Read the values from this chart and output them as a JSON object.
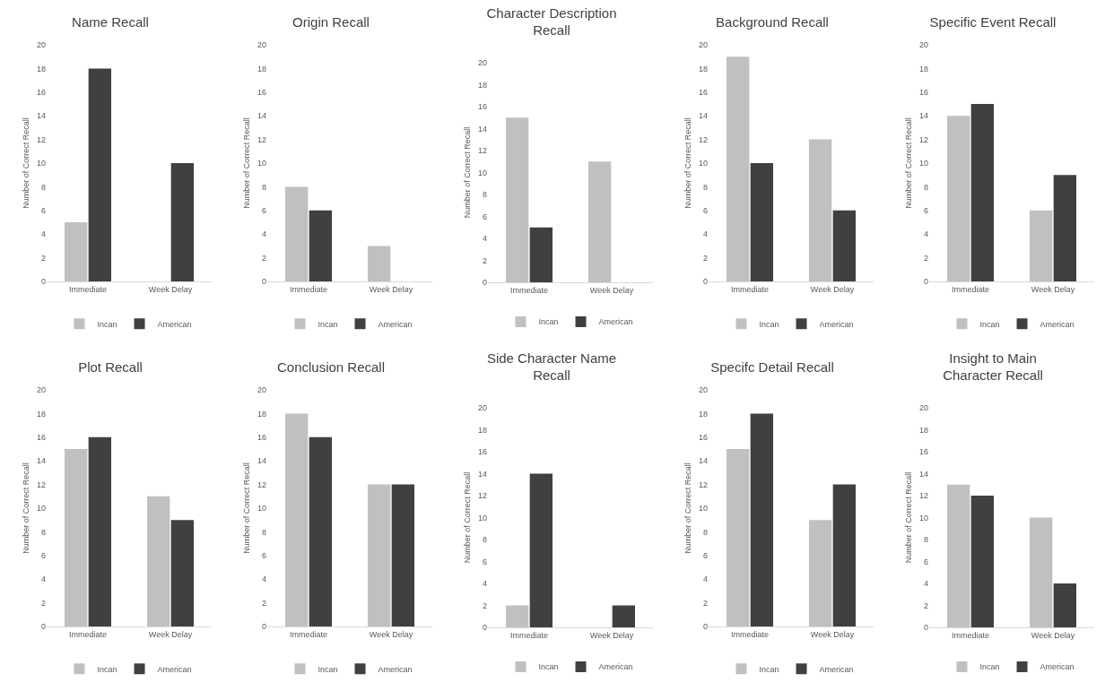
{
  "chart_data": [
    {
      "type": "bar",
      "title": "Name Recall",
      "ylabel": "Number of Correct Recall",
      "categories": [
        "Immediate",
        "Week Delay"
      ],
      "series": [
        {
          "name": "Incan",
          "color": "#c0c0c0",
          "values": [
            5,
            0
          ]
        },
        {
          "name": "American",
          "color": "#404040",
          "values": [
            18,
            10
          ]
        }
      ],
      "ylim": [
        0,
        20
      ],
      "yticks": [
        0,
        2,
        4,
        6,
        8,
        10,
        12,
        14,
        16,
        18,
        20
      ],
      "grid": false,
      "legend": "bottom"
    },
    {
      "type": "bar",
      "title": "Origin Recall",
      "ylabel": "Number of Correct Recall",
      "categories": [
        "Immediate",
        "Week Delay"
      ],
      "series": [
        {
          "name": "Incan",
          "color": "#c0c0c0",
          "values": [
            8,
            3
          ]
        },
        {
          "name": "American",
          "color": "#404040",
          "values": [
            6,
            0
          ]
        }
      ],
      "ylim": [
        0,
        20
      ],
      "yticks": [
        0,
        2,
        4,
        6,
        8,
        10,
        12,
        14,
        16,
        18,
        20
      ],
      "grid": false,
      "legend": "bottom"
    },
    {
      "type": "bar",
      "title": "Character Description Recall",
      "ylabel": "Number of Correct Recall",
      "categories": [
        "Immediate",
        "Week Delay"
      ],
      "series": [
        {
          "name": "Incan",
          "color": "#c0c0c0",
          "values": [
            15,
            11
          ]
        },
        {
          "name": "American",
          "color": "#404040",
          "values": [
            5,
            0
          ]
        }
      ],
      "ylim": [
        0,
        20
      ],
      "yticks": [
        0,
        2,
        4,
        6,
        8,
        10,
        12,
        14,
        16,
        18,
        20
      ],
      "grid": false,
      "legend": "bottom"
    },
    {
      "type": "bar",
      "title": "Background Recall",
      "ylabel": "Number of Correct Recall",
      "categories": [
        "Immediate",
        "Week Delay"
      ],
      "series": [
        {
          "name": "Incan",
          "color": "#c0c0c0",
          "values": [
            19,
            12
          ]
        },
        {
          "name": "American",
          "color": "#404040",
          "values": [
            10,
            6
          ]
        }
      ],
      "ylim": [
        0,
        20
      ],
      "yticks": [
        0,
        2,
        4,
        6,
        8,
        10,
        12,
        14,
        16,
        18,
        20
      ],
      "grid": false,
      "legend": "bottom"
    },
    {
      "type": "bar",
      "title": "Specific Event Recall",
      "ylabel": "Number of Correct Recall",
      "categories": [
        "Immediate",
        "Week Delay"
      ],
      "series": [
        {
          "name": "Incan",
          "color": "#c0c0c0",
          "values": [
            14,
            6
          ]
        },
        {
          "name": "American",
          "color": "#404040",
          "values": [
            15,
            9
          ]
        }
      ],
      "ylim": [
        0,
        20
      ],
      "yticks": [
        0,
        2,
        4,
        6,
        8,
        10,
        12,
        14,
        16,
        18,
        20
      ],
      "grid": false,
      "legend": "bottom"
    },
    {
      "type": "bar",
      "title": "Plot Recall",
      "ylabel": "Number of Correct Recall",
      "categories": [
        "Immediate",
        "Week Delay"
      ],
      "series": [
        {
          "name": "Incan",
          "color": "#c0c0c0",
          "values": [
            15,
            11
          ]
        },
        {
          "name": "American",
          "color": "#404040",
          "values": [
            16,
            9
          ]
        }
      ],
      "ylim": [
        0,
        20
      ],
      "yticks": [
        0,
        2,
        4,
        6,
        8,
        10,
        12,
        14,
        16,
        18,
        20
      ],
      "grid": false,
      "legend": "bottom"
    },
    {
      "type": "bar",
      "title": "Conclusion Recall",
      "ylabel": "Number of Correct Recall",
      "categories": [
        "Immediate",
        "Week Delay"
      ],
      "series": [
        {
          "name": "Incan",
          "color": "#c0c0c0",
          "values": [
            18,
            12
          ]
        },
        {
          "name": "American",
          "color": "#404040",
          "values": [
            16,
            12
          ]
        }
      ],
      "ylim": [
        0,
        20
      ],
      "yticks": [
        0,
        2,
        4,
        6,
        8,
        10,
        12,
        14,
        16,
        18,
        20
      ],
      "grid": false,
      "legend": "bottom"
    },
    {
      "type": "bar",
      "title": "Side Character Name Recall",
      "ylabel": "Number of Correct Recall",
      "categories": [
        "Immediate",
        "Week Delay"
      ],
      "series": [
        {
          "name": "Incan",
          "color": "#c0c0c0",
          "values": [
            2,
            0
          ]
        },
        {
          "name": "American",
          "color": "#404040",
          "values": [
            14,
            2
          ]
        }
      ],
      "ylim": [
        0,
        20
      ],
      "yticks": [
        0,
        2,
        4,
        6,
        8,
        10,
        12,
        14,
        16,
        18,
        20
      ],
      "grid": false,
      "legend": "bottom"
    },
    {
      "type": "bar",
      "title": "Specifc Detail Recall",
      "ylabel": "Number of Correct Recall",
      "categories": [
        "Immediate",
        "Week Delay"
      ],
      "series": [
        {
          "name": "Incan",
          "color": "#c0c0c0",
          "values": [
            15,
            9
          ]
        },
        {
          "name": "American",
          "color": "#404040",
          "values": [
            18,
            12
          ]
        }
      ],
      "ylim": [
        0,
        20
      ],
      "yticks": [
        0,
        2,
        4,
        6,
        8,
        10,
        12,
        14,
        16,
        18,
        20
      ],
      "grid": false,
      "legend": "bottom"
    },
    {
      "type": "bar",
      "title": "Insight to Main Character Recall",
      "ylabel": "Number of Correct Recall",
      "categories": [
        "Immediate",
        "Week Delay"
      ],
      "series": [
        {
          "name": "Incan",
          "color": "#c0c0c0",
          "values": [
            13,
            10
          ]
        },
        {
          "name": "American",
          "color": "#404040",
          "values": [
            12,
            4
          ]
        }
      ],
      "ylim": [
        0,
        20
      ],
      "yticks": [
        0,
        2,
        4,
        6,
        8,
        10,
        12,
        14,
        16,
        18,
        20
      ],
      "grid": false,
      "legend": "bottom"
    }
  ]
}
